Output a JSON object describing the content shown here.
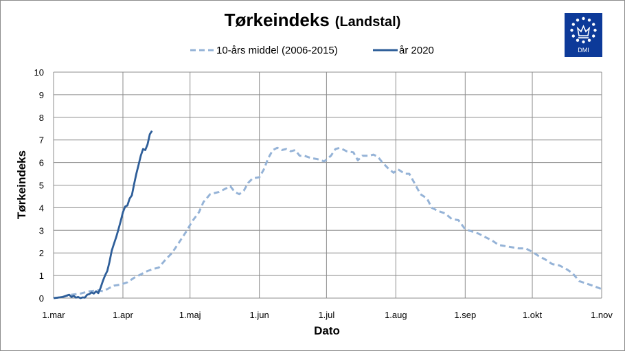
{
  "chart_data": {
    "type": "line",
    "title": "Tørkeindeks",
    "subtitle": "(Landstal)",
    "xlabel": "Dato",
    "ylabel": "Tørkeindeks",
    "ylim": [
      0,
      10
    ],
    "yticks": [
      0,
      1,
      2,
      3,
      4,
      5,
      6,
      7,
      8,
      9,
      10
    ],
    "xlim": [
      "2020-03-01",
      "2020-11-01"
    ],
    "xticks": [
      {
        "date": "2020-03-01",
        "label": "1.mar"
      },
      {
        "date": "2020-04-01",
        "label": "1.apr"
      },
      {
        "date": "2020-05-01",
        "label": "1.maj"
      },
      {
        "date": "2020-06-01",
        "label": "1.jun"
      },
      {
        "date": "2020-07-01",
        "label": "1.jul"
      },
      {
        "date": "2020-08-01",
        "label": "1.aug"
      },
      {
        "date": "2020-09-01",
        "label": "1.sep"
      },
      {
        "date": "2020-10-01",
        "label": "1.okt"
      },
      {
        "date": "2020-11-01",
        "label": "1.nov"
      }
    ],
    "grid": true,
    "legend_position": "top",
    "series": [
      {
        "name": "10-års middel (2006-2015)",
        "color": "#95b3d7",
        "style": "dashed",
        "points": [
          [
            "2020-03-01",
            0.0
          ],
          [
            "2020-03-05",
            0.05
          ],
          [
            "2020-03-09",
            0.15
          ],
          [
            "2020-03-13",
            0.2
          ],
          [
            "2020-03-17",
            0.3
          ],
          [
            "2020-03-21",
            0.35
          ],
          [
            "2020-03-23",
            0.3
          ],
          [
            "2020-03-26",
            0.45
          ],
          [
            "2020-03-28",
            0.55
          ],
          [
            "2020-03-31",
            0.6
          ],
          [
            "2020-04-03",
            0.7
          ],
          [
            "2020-04-06",
            0.9
          ],
          [
            "2020-04-09",
            1.05
          ],
          [
            "2020-04-12",
            1.2
          ],
          [
            "2020-04-15",
            1.3
          ],
          [
            "2020-04-17",
            1.35
          ],
          [
            "2020-04-20",
            1.7
          ],
          [
            "2020-04-23",
            2.0
          ],
          [
            "2020-04-26",
            2.45
          ],
          [
            "2020-04-29",
            2.9
          ],
          [
            "2020-05-02",
            3.4
          ],
          [
            "2020-05-05",
            3.8
          ],
          [
            "2020-05-07",
            4.25
          ],
          [
            "2020-05-10",
            4.6
          ],
          [
            "2020-05-12",
            4.65
          ],
          [
            "2020-05-14",
            4.7
          ],
          [
            "2020-05-17",
            4.85
          ],
          [
            "2020-05-19",
            4.95
          ],
          [
            "2020-05-21",
            4.7
          ],
          [
            "2020-05-23",
            4.6
          ],
          [
            "2020-05-25",
            4.75
          ],
          [
            "2020-05-27",
            5.1
          ],
          [
            "2020-05-29",
            5.3
          ],
          [
            "2020-06-01",
            5.35
          ],
          [
            "2020-06-03",
            5.7
          ],
          [
            "2020-06-05",
            6.2
          ],
          [
            "2020-06-07",
            6.55
          ],
          [
            "2020-06-09",
            6.65
          ],
          [
            "2020-06-11",
            6.55
          ],
          [
            "2020-06-13",
            6.6
          ],
          [
            "2020-06-15",
            6.5
          ],
          [
            "2020-06-17",
            6.55
          ],
          [
            "2020-06-19",
            6.3
          ],
          [
            "2020-06-21",
            6.3
          ],
          [
            "2020-06-24",
            6.2
          ],
          [
            "2020-06-27",
            6.15
          ],
          [
            "2020-06-30",
            6.05
          ],
          [
            "2020-07-03",
            6.3
          ],
          [
            "2020-07-05",
            6.6
          ],
          [
            "2020-07-07",
            6.65
          ],
          [
            "2020-07-10",
            6.5
          ],
          [
            "2020-07-13",
            6.45
          ],
          [
            "2020-07-15",
            6.1
          ],
          [
            "2020-07-17",
            6.3
          ],
          [
            "2020-07-20",
            6.3
          ],
          [
            "2020-07-22",
            6.35
          ],
          [
            "2020-07-24",
            6.25
          ],
          [
            "2020-07-26",
            6.0
          ],
          [
            "2020-07-29",
            5.7
          ],
          [
            "2020-07-31",
            5.55
          ],
          [
            "2020-08-02",
            5.7
          ],
          [
            "2020-08-05",
            5.5
          ],
          [
            "2020-08-07",
            5.5
          ],
          [
            "2020-08-09",
            5.15
          ],
          [
            "2020-08-12",
            4.6
          ],
          [
            "2020-08-15",
            4.4
          ],
          [
            "2020-08-17",
            4.0
          ],
          [
            "2020-08-20",
            3.85
          ],
          [
            "2020-08-23",
            3.75
          ],
          [
            "2020-08-26",
            3.5
          ],
          [
            "2020-08-29",
            3.45
          ],
          [
            "2020-09-01",
            3.05
          ],
          [
            "2020-09-04",
            2.95
          ],
          [
            "2020-09-07",
            2.85
          ],
          [
            "2020-09-10",
            2.7
          ],
          [
            "2020-09-13",
            2.55
          ],
          [
            "2020-09-16",
            2.35
          ],
          [
            "2020-09-19",
            2.3
          ],
          [
            "2020-09-22",
            2.25
          ],
          [
            "2020-09-25",
            2.2
          ],
          [
            "2020-09-28",
            2.2
          ],
          [
            "2020-10-01",
            2.05
          ],
          [
            "2020-10-04",
            1.85
          ],
          [
            "2020-10-07",
            1.7
          ],
          [
            "2020-10-10",
            1.5
          ],
          [
            "2020-10-13",
            1.45
          ],
          [
            "2020-10-16",
            1.3
          ],
          [
            "2020-10-19",
            1.1
          ],
          [
            "2020-10-22",
            0.75
          ],
          [
            "2020-10-25",
            0.65
          ],
          [
            "2020-10-28",
            0.55
          ],
          [
            "2020-11-01",
            0.4
          ]
        ]
      },
      {
        "name": "år 2020",
        "color": "#2e5e99",
        "style": "solid",
        "points": [
          [
            "2020-03-01",
            0.0
          ],
          [
            "2020-03-03",
            0.02
          ],
          [
            "2020-03-05",
            0.05
          ],
          [
            "2020-03-07",
            0.12
          ],
          [
            "2020-03-08",
            0.15
          ],
          [
            "2020-03-09",
            0.05
          ],
          [
            "2020-03-10",
            0.1
          ],
          [
            "2020-03-11",
            0.02
          ],
          [
            "2020-03-12",
            0.05
          ],
          [
            "2020-03-13",
            0.0
          ],
          [
            "2020-03-14",
            0.03
          ],
          [
            "2020-03-15",
            0.02
          ],
          [
            "2020-03-16",
            0.15
          ],
          [
            "2020-03-17",
            0.18
          ],
          [
            "2020-03-18",
            0.25
          ],
          [
            "2020-03-19",
            0.2
          ],
          [
            "2020-03-20",
            0.3
          ],
          [
            "2020-03-21",
            0.22
          ],
          [
            "2020-03-22",
            0.45
          ],
          [
            "2020-03-23",
            0.75
          ],
          [
            "2020-03-24",
            1.0
          ],
          [
            "2020-03-25",
            1.2
          ],
          [
            "2020-03-26",
            1.6
          ],
          [
            "2020-03-27",
            2.1
          ],
          [
            "2020-03-28",
            2.4
          ],
          [
            "2020-03-29",
            2.7
          ],
          [
            "2020-03-30",
            3.05
          ],
          [
            "2020-03-31",
            3.4
          ],
          [
            "2020-04-01",
            3.8
          ],
          [
            "2020-04-02",
            4.05
          ],
          [
            "2020-04-03",
            4.1
          ],
          [
            "2020-04-04",
            4.4
          ],
          [
            "2020-04-05",
            4.55
          ],
          [
            "2020-04-06",
            5.05
          ],
          [
            "2020-04-07",
            5.5
          ],
          [
            "2020-04-08",
            5.9
          ],
          [
            "2020-04-09",
            6.3
          ],
          [
            "2020-04-10",
            6.6
          ],
          [
            "2020-04-11",
            6.55
          ],
          [
            "2020-04-12",
            6.8
          ],
          [
            "2020-04-13",
            7.25
          ],
          [
            "2020-04-14",
            7.4
          ]
        ]
      }
    ]
  },
  "logo": {
    "text": "DMI",
    "background_color": "#0d3a99"
  }
}
